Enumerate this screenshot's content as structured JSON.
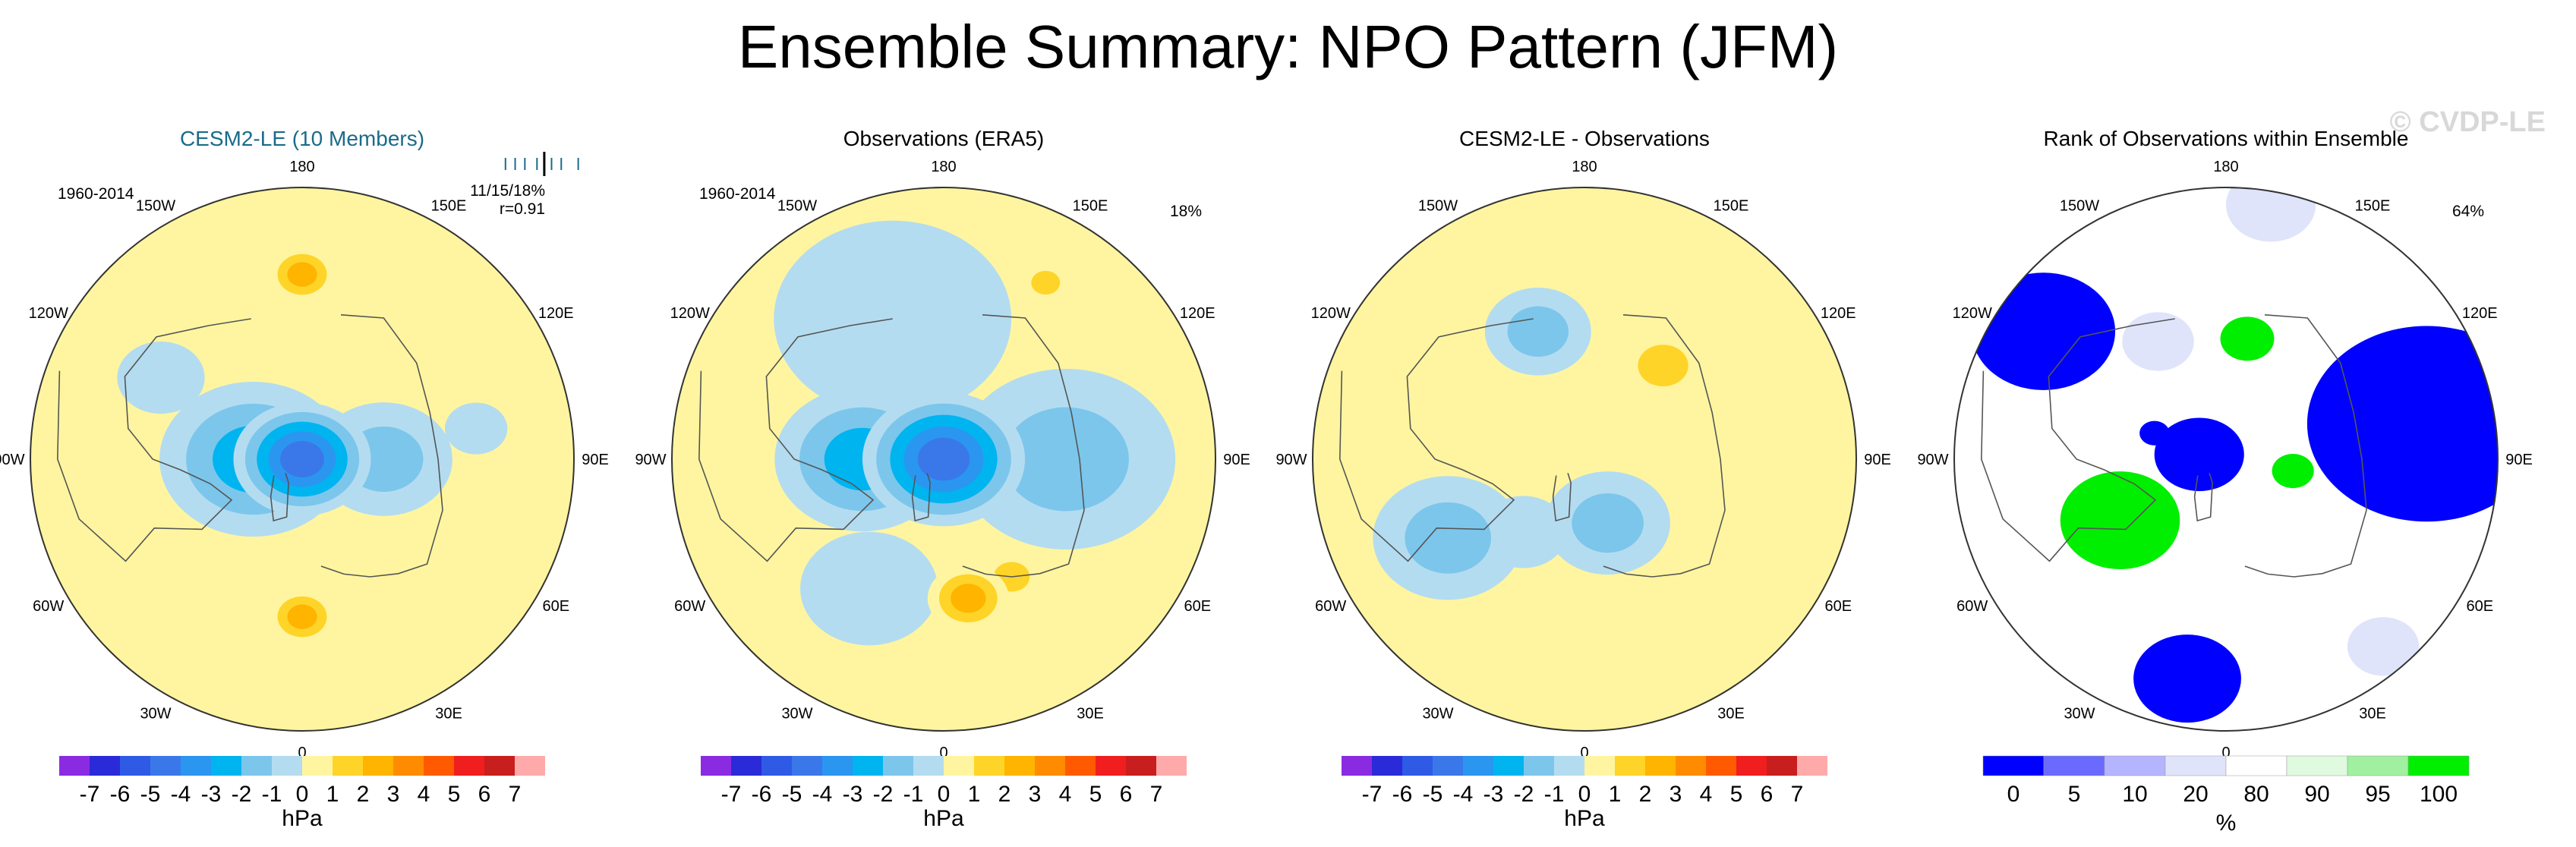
{
  "page": {
    "title": "Ensemble Summary: NPO Pattern (JFM)",
    "watermark": "© CVDP-LE"
  },
  "colors": {
    "land_outline": "#555555",
    "title_blue": "#1a6b8a"
  },
  "chart_data": [
    {
      "type": "heatmap",
      "projection": "north polar stereographic",
      "title": "CESM2-LE (10 Members)",
      "period": "1960-2014",
      "stat_text": "11/15/18%",
      "stat_r": "r=0.91",
      "lon_labels": [
        "180",
        "150E",
        "120E",
        "90E",
        "60E",
        "30E",
        "0",
        "30W",
        "60W",
        "90W",
        "120W",
        "150W"
      ],
      "units": "hPa",
      "levels": [
        -7,
        -6,
        -5,
        -4,
        -3,
        -2,
        -1,
        0,
        1,
        2,
        3,
        4,
        5,
        6,
        7
      ],
      "colors": [
        "#8a2be2",
        "#2a2ad8",
        "#2e5ae6",
        "#3a78ea",
        "#2a96f0",
        "#00b4f0",
        "#7cc6ec",
        "#b4dcf0",
        "#fff5a0",
        "#ffd428",
        "#ffb400",
        "#ff8c00",
        "#ff5a00",
        "#f01e1e",
        "#c81e1e",
        "#ffaaaa"
      ],
      "spread_ticks": [
        -0.6,
        -0.4,
        -0.2,
        0.05,
        0.2,
        0.35,
        0.55,
        0.9
      ],
      "spread_obs": 0.2,
      "blobs": [
        {
          "lon": 180,
          "r": 0.68,
          "radius": 0.11,
          "value": 2.2
        },
        {
          "lon": 0,
          "r": 0.58,
          "radius": 0.11,
          "value": 2.6
        },
        {
          "lon": 0,
          "r": 0.0,
          "radius": 0.22,
          "value": -4.5
        },
        {
          "lon": 270,
          "r": 0.18,
          "radius": 0.3,
          "value": -2.5
        },
        {
          "lon": 90,
          "r": 0.3,
          "radius": 0.22,
          "value": -1.5
        },
        {
          "lon": 240,
          "r": 0.6,
          "radius": 0.14,
          "value": -0.8
        },
        {
          "lon": 100,
          "r": 0.65,
          "radius": 0.1,
          "value": -0.6
        }
      ]
    },
    {
      "type": "heatmap",
      "projection": "north polar stereographic",
      "title": "Observations (ERA5)",
      "period": "1960-2014",
      "stat_text": "18%",
      "lon_labels": [
        "180",
        "150E",
        "120E",
        "90E",
        "60E",
        "30E",
        "0",
        "30W",
        "60W",
        "90W",
        "120W",
        "150W"
      ],
      "units": "hPa",
      "levels": [
        -7,
        -6,
        -5,
        -4,
        -3,
        -2,
        -1,
        0,
        1,
        2,
        3,
        4,
        5,
        6,
        7
      ],
      "colors": [
        "#8a2be2",
        "#2a2ad8",
        "#2e5ae6",
        "#3a78ea",
        "#2a96f0",
        "#00b4f0",
        "#7cc6ec",
        "#b4dcf0",
        "#fff5a0",
        "#ffd428",
        "#ffb400",
        "#ff8c00",
        "#ff5a00",
        "#f01e1e",
        "#c81e1e",
        "#ffaaaa"
      ],
      "blobs": [
        {
          "lon": 0,
          "r": 0.0,
          "radius": 0.26,
          "value": -5.0
        },
        {
          "lon": 270,
          "r": 0.3,
          "radius": 0.28,
          "value": -2.2
        },
        {
          "lon": 90,
          "r": 0.45,
          "radius": 0.35,
          "value": -1.2
        },
        {
          "lon": 200,
          "r": 0.55,
          "radius": 0.38,
          "value": -0.8
        },
        {
          "lon": 330,
          "r": 0.55,
          "radius": 0.22,
          "value": -0.6
        },
        {
          "lon": 10,
          "r": 0.52,
          "radius": 0.13,
          "value": 2.6
        },
        {
          "lon": 30,
          "r": 0.5,
          "radius": 0.1,
          "value": 1.6
        },
        {
          "lon": 150,
          "r": 0.75,
          "radius": 0.08,
          "value": 1.2
        }
      ]
    },
    {
      "type": "heatmap",
      "projection": "north polar stereographic",
      "title": "CESM2-LE - Observations",
      "lon_labels": [
        "180",
        "150E",
        "120E",
        "90E",
        "60E",
        "30E",
        "0",
        "30W",
        "60W",
        "90W",
        "120W",
        "150W"
      ],
      "units": "hPa",
      "levels": [
        -7,
        -6,
        -5,
        -4,
        -3,
        -2,
        -1,
        0,
        1,
        2,
        3,
        4,
        5,
        6,
        7
      ],
      "colors": [
        "#8a2be2",
        "#2a2ad8",
        "#2e5ae6",
        "#3a78ea",
        "#2a96f0",
        "#00b4f0",
        "#7cc6ec",
        "#b4dcf0",
        "#fff5a0",
        "#ffd428",
        "#ffb400",
        "#ff8c00",
        "#ff5a00",
        "#f01e1e",
        "#c81e1e",
        "#ffaaaa"
      ],
      "blobs": [
        {
          "lon": 200,
          "r": 0.5,
          "radius": 0.17,
          "value": -1.5
        },
        {
          "lon": 140,
          "r": 0.45,
          "radius": 0.14,
          "value": 2.0
        },
        {
          "lon": 300,
          "r": 0.58,
          "radius": 0.24,
          "value": -1.3
        },
        {
          "lon": 20,
          "r": 0.25,
          "radius": 0.2,
          "value": -1.1
        },
        {
          "lon": 320,
          "r": 0.35,
          "radius": 0.14,
          "value": -0.6
        }
      ]
    },
    {
      "type": "heatmap",
      "projection": "north polar stereographic",
      "title": "Rank of Observations within Ensemble",
      "stat_text": "64%",
      "lon_labels": [
        "180",
        "150E",
        "120E",
        "90E",
        "60E",
        "30E",
        "0",
        "30W",
        "60W",
        "90W",
        "120W",
        "150W"
      ],
      "units": "%",
      "rank_labels": [
        "0",
        "5",
        "10",
        "20",
        "80",
        "90",
        "95",
        "100"
      ],
      "rank_colors": [
        "#0000ff",
        "#6a6aff",
        "#b4b4ff",
        "#e0e4fa",
        "#ffffff",
        "#e0fae0",
        "#a0f0a0",
        "#00ee00"
      ],
      "rank_regions": [
        {
          "lon": 100,
          "r": 0.75,
          "radius": 0.4,
          "category": 0
        },
        {
          "lon": 235,
          "r": 0.82,
          "radius": 0.24,
          "category": 0
        },
        {
          "lon": 350,
          "r": 0.82,
          "radius": 0.18,
          "category": 0
        },
        {
          "lon": 260,
          "r": 0.1,
          "radius": 0.15,
          "category": 0
        },
        {
          "lon": 250,
          "r": 0.28,
          "radius": 0.05,
          "category": 0
        },
        {
          "lon": 300,
          "r": 0.45,
          "radius": 0.2,
          "category": 7
        },
        {
          "lon": 170,
          "r": 0.45,
          "radius": 0.09,
          "category": 7
        },
        {
          "lon": 80,
          "r": 0.25,
          "radius": 0.07,
          "category": 7
        },
        {
          "lon": 170,
          "r": 0.95,
          "radius": 0.15,
          "category": 3
        },
        {
          "lon": 210,
          "r": 0.5,
          "radius": 0.12,
          "category": 3
        },
        {
          "lon": 40,
          "r": 0.9,
          "radius": 0.12,
          "category": 3
        }
      ]
    }
  ]
}
